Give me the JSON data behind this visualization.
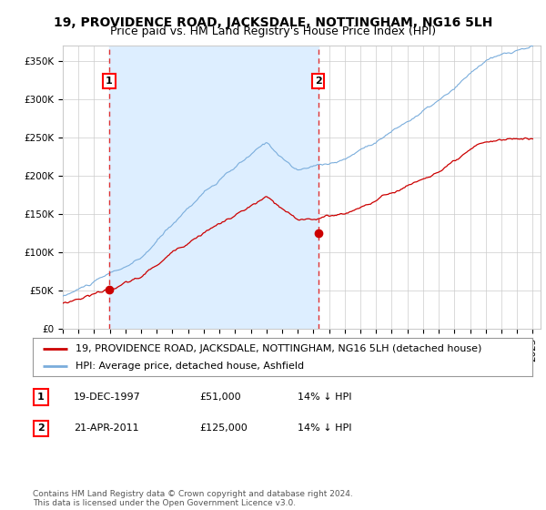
{
  "title": "19, PROVIDENCE ROAD, JACKSDALE, NOTTINGHAM, NG16 5LH",
  "subtitle": "Price paid vs. HM Land Registry's House Price Index (HPI)",
  "legend_line1": "19, PROVIDENCE ROAD, JACKSDALE, NOTTINGHAM, NG16 5LH (detached house)",
  "legend_line2": "HPI: Average price, detached house, Ashfield",
  "annotation1_label": "1",
  "annotation1_date": "19-DEC-1997",
  "annotation1_price": "£51,000",
  "annotation1_hpi": "14% ↓ HPI",
  "annotation1_year": 1997.96,
  "annotation1_value": 51000,
  "annotation2_label": "2",
  "annotation2_date": "21-APR-2011",
  "annotation2_price": "£125,000",
  "annotation2_hpi": "14% ↓ HPI",
  "annotation2_year": 2011.3,
  "annotation2_value": 125000,
  "ylabel_ticks": [
    0,
    50000,
    100000,
    150000,
    200000,
    250000,
    300000,
    350000
  ],
  "ylabel_labels": [
    "£0",
    "£50K",
    "£100K",
    "£150K",
    "£200K",
    "£250K",
    "£300K",
    "£350K"
  ],
  "xlim_start": 1995.0,
  "xlim_end": 2025.5,
  "ylim_min": 0,
  "ylim_max": 370000,
  "line_color_property": "#cc0000",
  "line_color_hpi": "#7aaddc",
  "shade_color": "#ddeeff",
  "dot_color": "#cc0000",
  "vline_color": "#dd3333",
  "background_color": "#ffffff",
  "grid_color": "#cccccc",
  "footer_text": "Contains HM Land Registry data © Crown copyright and database right 2024.\nThis data is licensed under the Open Government Licence v3.0.",
  "title_fontsize": 10,
  "subtitle_fontsize": 9,
  "tick_fontsize": 7.5,
  "legend_fontsize": 8,
  "table_fontsize": 8
}
